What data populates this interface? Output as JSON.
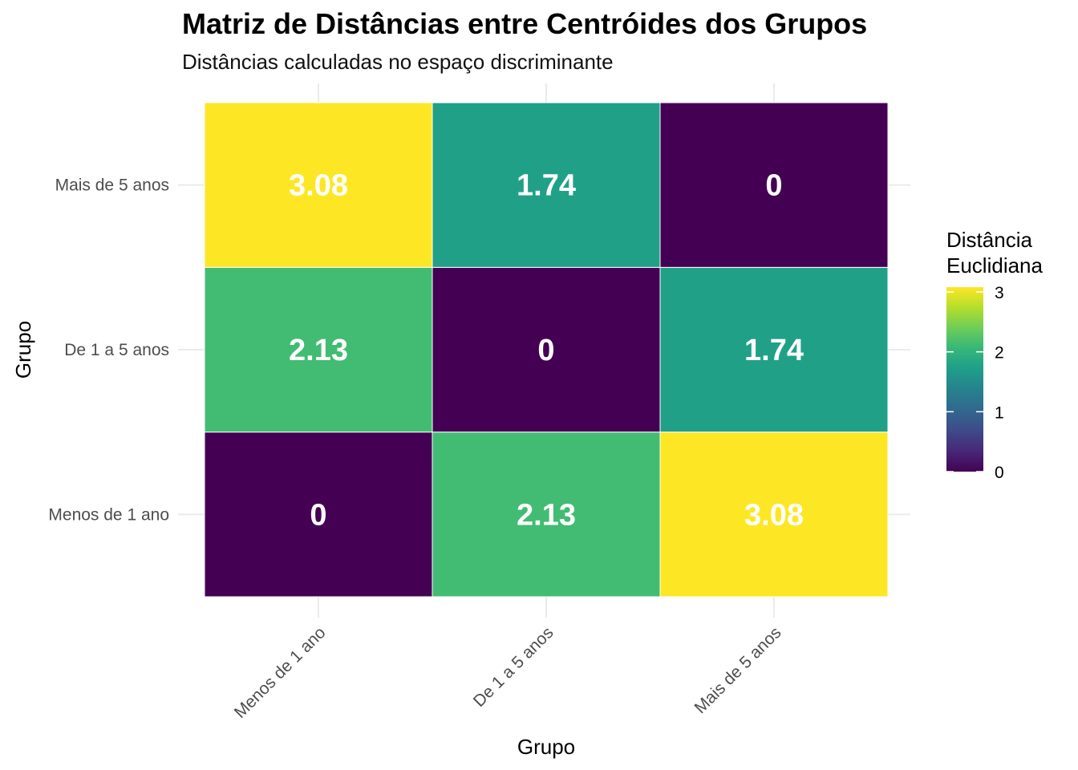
{
  "chart_data": {
    "type": "heatmap",
    "title": "Matriz de Distâncias entre Centróides dos Grupos",
    "subtitle": "Distâncias calculadas no espaço discriminante",
    "xlabel": "Grupo",
    "ylabel": "Grupo",
    "x_categories": [
      "Menos de 1 ano",
      "De 1 a 5 anos",
      "Mais de 5 anos"
    ],
    "y_categories": [
      "Menos de 1 ano",
      "De 1 a 5 anos",
      "Mais de 5 anos"
    ],
    "values": [
      [
        0,
        2.13,
        3.08
      ],
      [
        2.13,
        0,
        1.74
      ],
      [
        3.08,
        1.74,
        0
      ]
    ],
    "value_labels": [
      [
        "0",
        "2.13",
        "3.08"
      ],
      [
        "2.13",
        "0",
        "1.74"
      ],
      [
        "3.08",
        "1.74",
        "0"
      ]
    ],
    "color_scale": "viridis",
    "color_range": [
      0,
      3.08
    ],
    "legend": {
      "title_lines": [
        "Distância",
        "Euclidiana"
      ],
      "ticks": [
        0,
        1,
        2,
        3
      ],
      "placement": "right"
    },
    "grid": true
  },
  "colors": {
    "viridis_stops": [
      "#440154",
      "#482878",
      "#3E4A89",
      "#31688E",
      "#26828E",
      "#1F9E89",
      "#35B779",
      "#6DCD59",
      "#B4DE2C",
      "#FDE725"
    ],
    "grid": "#ebebeb",
    "cell_border": "#ffffff",
    "cell_text": "#ffffff"
  }
}
